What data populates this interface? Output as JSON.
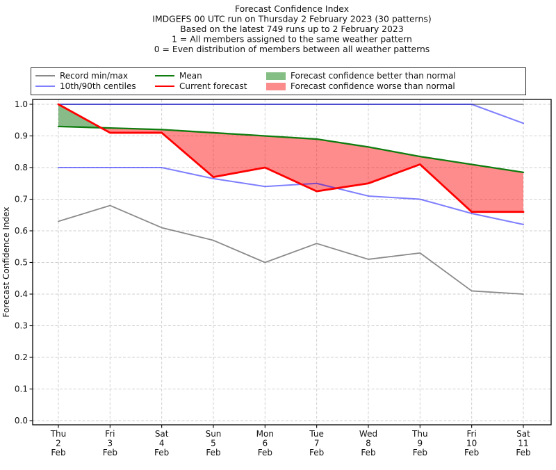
{
  "header": {
    "lines": [
      "Forecast Confidence Index",
      "IMDGEFS 00 UTC run on Thursday 2 February 2023 (30 patterns)",
      "Based on the latest 749 runs up to 2 February 2023",
      "1 = All members assigned to the same weather pattern",
      "0 = Even distribution of members between all weather patterns"
    ]
  },
  "legend": {
    "record": "Record min/max",
    "centiles": "10th/90th centiles",
    "mean": "Mean",
    "current": "Current forecast",
    "better": "Forecast confidence better than normal",
    "worse": "Forecast confidence worse than normal"
  },
  "colors": {
    "record": "#8a8a8a",
    "centiles_line": "#8080ff",
    "centiles_stroke": "#0000ff",
    "mean": "#0e7c0e",
    "current": "#ff0000",
    "better_patch": "#84be84",
    "worse_patch": "#fc8c8c",
    "grid": "#cfcfcf",
    "axis": "#000000"
  },
  "chart_data": {
    "type": "line",
    "title": "Forecast Confidence Index",
    "ylabel": "Forecast Confidence Index",
    "ylim": [
      0.0,
      1.0
    ],
    "grid": true,
    "legend_position": "top",
    "categories": [
      [
        "Thu",
        "2",
        "Feb"
      ],
      [
        "Fri",
        "3",
        "Feb"
      ],
      [
        "Sat",
        "4",
        "Feb"
      ],
      [
        "Sun",
        "5",
        "Feb"
      ],
      [
        "Mon",
        "6",
        "Feb"
      ],
      [
        "Tue",
        "7",
        "Feb"
      ],
      [
        "Wed",
        "8",
        "Feb"
      ],
      [
        "Thu",
        "9",
        "Feb"
      ],
      [
        "Fri",
        "10",
        "Feb"
      ],
      [
        "Sat",
        "11",
        "Feb"
      ]
    ],
    "yticks": [
      {
        "v": 0.0,
        "label": "0.0"
      },
      {
        "v": 0.1,
        "label": "0.1"
      },
      {
        "v": 0.2,
        "label": "0.2"
      },
      {
        "v": 0.3,
        "label": "0.3"
      },
      {
        "v": 0.4,
        "label": "0.4"
      },
      {
        "v": 0.5,
        "label": "0.5"
      },
      {
        "v": 0.6,
        "label": "0.6"
      },
      {
        "v": 0.7,
        "label": "0.7"
      },
      {
        "v": 0.8,
        "label": "0.8"
      },
      {
        "v": 0.9,
        "label": "0.9"
      },
      {
        "v": 1.0,
        "label": "1.0"
      }
    ],
    "series": [
      {
        "id": "record_max",
        "name": "Record max",
        "color": "#8a8a8a",
        "opacity": 1,
        "width": 1.8,
        "values": [
          1.0,
          1.0,
          1.0,
          1.0,
          1.0,
          1.0,
          1.0,
          1.0,
          1.0,
          1.0
        ]
      },
      {
        "id": "record_min",
        "name": "Record min",
        "color": "#8a8a8a",
        "opacity": 1,
        "width": 1.8,
        "values": [
          0.63,
          0.68,
          0.61,
          0.57,
          0.5,
          0.56,
          0.51,
          0.53,
          0.41,
          0.4
        ]
      },
      {
        "id": "centile_90",
        "name": "90th centile",
        "color": "#0000ff",
        "opacity": 0.5,
        "width": 2,
        "values": [
          1.0,
          1.0,
          1.0,
          1.0,
          1.0,
          1.0,
          1.0,
          1.0,
          1.0,
          0.94
        ]
      },
      {
        "id": "centile_10",
        "name": "10th centile",
        "color": "#0000ff",
        "opacity": 0.5,
        "width": 2,
        "values": [
          0.8,
          0.8,
          0.8,
          0.765,
          0.74,
          0.75,
          0.71,
          0.7,
          0.655,
          0.62
        ]
      },
      {
        "id": "mean",
        "name": "Mean",
        "color": "#0e7c0e",
        "opacity": 1,
        "width": 2.3,
        "values": [
          0.93,
          0.925,
          0.92,
          0.91,
          0.9,
          0.89,
          0.865,
          0.835,
          0.81,
          0.785
        ]
      },
      {
        "id": "current",
        "name": "Current forecast",
        "color": "#ff0000",
        "opacity": 1,
        "width": 2.8,
        "values": [
          1.0,
          0.91,
          0.91,
          0.77,
          0.8,
          0.725,
          0.75,
          0.81,
          0.66,
          0.66
        ]
      }
    ],
    "fills": {
      "between": [
        "current",
        "mean"
      ],
      "better_color": "#147814",
      "better_opacity": 0.5,
      "worse_color": "#ff0000",
      "worse_opacity": 0.45
    }
  }
}
